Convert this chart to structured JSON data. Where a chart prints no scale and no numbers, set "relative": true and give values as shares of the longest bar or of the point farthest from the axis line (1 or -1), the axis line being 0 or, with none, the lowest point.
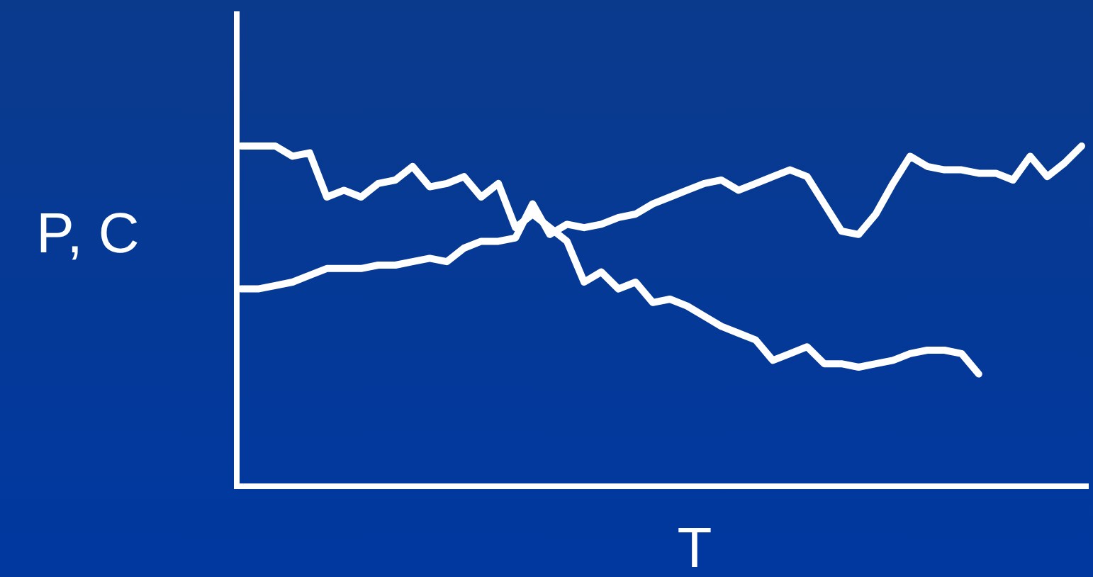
{
  "chart_data": {
    "type": "line",
    "relative": true,
    "xlabel": "T",
    "ylabel": "P, C",
    "line_style": "solid",
    "marker": "none",
    "categories": [
      null,
      null,
      null,
      null,
      null,
      null,
      null,
      null,
      null,
      null,
      null,
      null,
      null,
      null,
      null,
      null,
      null,
      null,
      null,
      null,
      null,
      null,
      null,
      null,
      null,
      null,
      null,
      null,
      null,
      null,
      null,
      null,
      null,
      null,
      null,
      null,
      null,
      null,
      null,
      null,
      null,
      null,
      null,
      null,
      null,
      null,
      null,
      null,
      null,
      null
    ],
    "series": [
      {
        "color": "#ffffff",
        "values": [
          1.0,
          1.0,
          1.0,
          0.97,
          0.98,
          0.85,
          0.87,
          0.85,
          0.89,
          0.9,
          0.94,
          0.88,
          0.89,
          0.91,
          0.85,
          0.89,
          0.76,
          0.8,
          0.76,
          0.72,
          0.6,
          0.63,
          0.58,
          0.6,
          0.54,
          0.55,
          0.53,
          0.5,
          0.47,
          0.45,
          0.43,
          0.37,
          0.39,
          0.41,
          0.36,
          0.36,
          0.35,
          0.36,
          0.37,
          0.39,
          0.4,
          0.4,
          0.39,
          0.33,
          null,
          null,
          null,
          null,
          null,
          null
        ]
      },
      {
        "color": "#ffffff",
        "values": [
          0.58,
          0.58,
          0.59,
          0.6,
          0.62,
          0.64,
          0.64,
          0.64,
          0.65,
          0.65,
          0.66,
          0.67,
          0.66,
          0.7,
          0.72,
          0.72,
          0.73,
          0.83,
          0.74,
          0.77,
          0.76,
          0.77,
          0.79,
          0.8,
          0.83,
          0.85,
          0.87,
          0.89,
          0.9,
          0.87,
          0.89,
          0.91,
          0.93,
          0.91,
          0.83,
          0.75,
          0.74,
          0.8,
          0.89,
          0.97,
          0.94,
          0.93,
          0.93,
          0.92,
          0.92,
          0.9,
          0.97,
          0.91,
          0.95,
          1.0
        ]
      }
    ]
  }
}
